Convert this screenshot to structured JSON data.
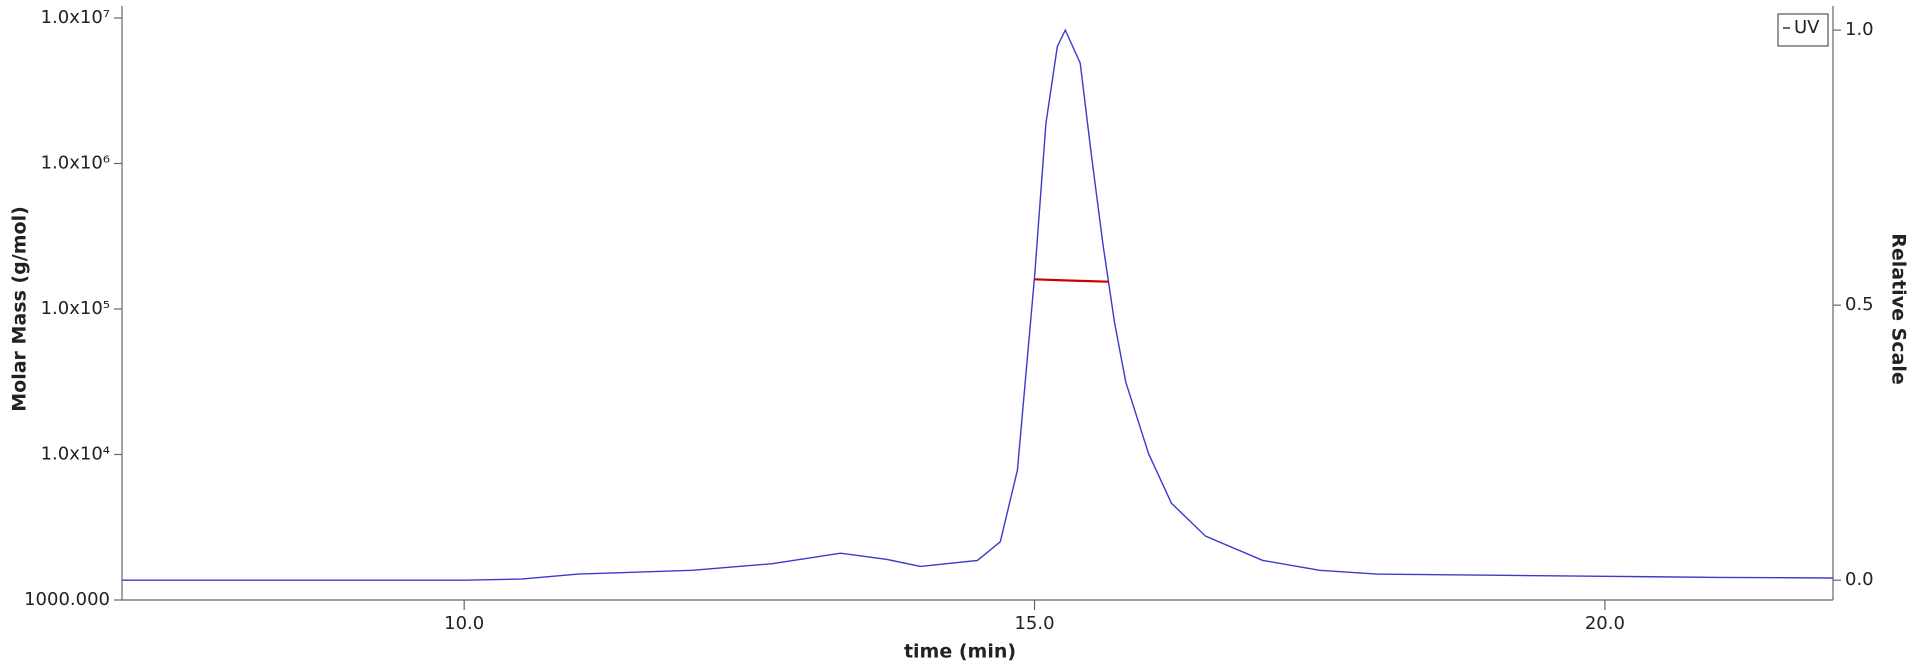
{
  "chart_data": {
    "type": "line",
    "x_label": "time (min)",
    "y_label": "Molar Mass (g/mol)",
    "y2_label": "Relative Scale",
    "xlim": [
      7,
      22
    ],
    "xticks": [
      {
        "value": 10,
        "label": "10.0"
      },
      {
        "value": 15,
        "label": "15.0"
      },
      {
        "value": 20,
        "label": "20.0"
      }
    ],
    "ylim": [
      1000,
      10000000
    ],
    "log_y": true,
    "yticks": [
      {
        "value": 1000,
        "label": "1000.000"
      },
      {
        "value": 10000,
        "label": "1.0x10⁴"
      },
      {
        "value": 100000,
        "label": "1.0x10⁵"
      },
      {
        "value": 1000000,
        "label": "1.0x10⁶"
      },
      {
        "value": 10000000,
        "label": "1.0x10⁷"
      }
    ],
    "y2lim": [
      -0.036,
      1.022
    ],
    "y2ticks": [
      {
        "value": 0,
        "label": "0.0"
      },
      {
        "value": 0.5,
        "label": "0.5"
      },
      {
        "value": 1,
        "label": "1.0"
      }
    ],
    "legend": "top-right",
    "series": [
      {
        "name": "UV",
        "color": "#3a3acc",
        "axis": "y2",
        "x": [
          7,
          8,
          9,
          10,
          10.5,
          11,
          12,
          12.7,
          13.3,
          13.7,
          14,
          14.5,
          14.7,
          14.85,
          15.0,
          15.1,
          15.2,
          15.27,
          15.4,
          15.5,
          15.6,
          15.7,
          15.8,
          16.0,
          16.2,
          16.5,
          17,
          17.5,
          18,
          19,
          20,
          21,
          22
        ],
        "values": [
          0.0,
          0.0,
          0.0,
          0.0,
          0.002,
          0.011,
          0.018,
          0.03,
          0.049,
          0.038,
          0.025,
          0.036,
          0.07,
          0.2,
          0.55,
          0.83,
          0.97,
          1.0,
          0.94,
          0.77,
          0.61,
          0.47,
          0.36,
          0.23,
          0.14,
          0.08,
          0.036,
          0.018,
          0.011,
          0.009,
          0.007,
          0.005,
          0.004
        ]
      },
      {
        "color": "#cc0000",
        "axis": "y",
        "x": [
          15.0,
          15.2,
          15.4,
          15.65
        ],
        "values": [
          160000,
          158000,
          156000,
          154000
        ]
      }
    ]
  }
}
